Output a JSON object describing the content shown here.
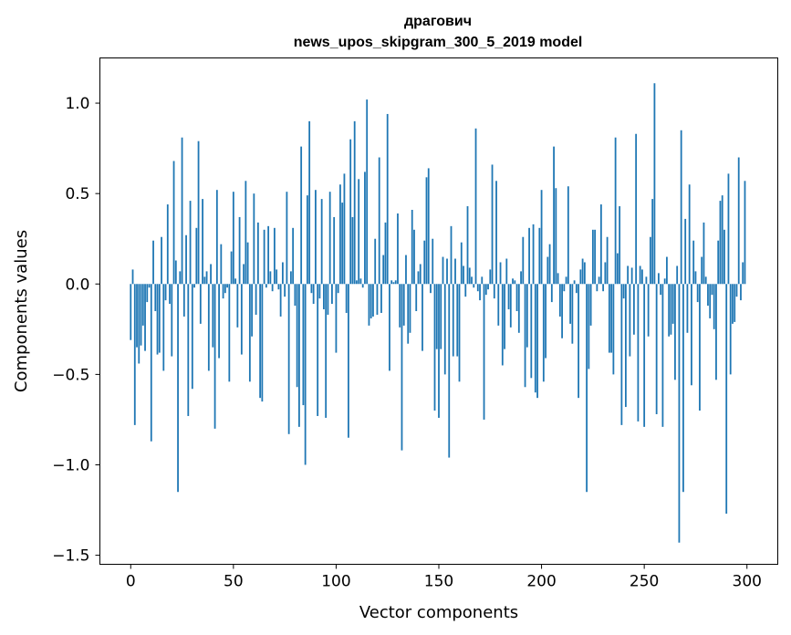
{
  "chart_data": {
    "type": "bar",
    "title_lines": [
      "драгович",
      "news_upos_skipgram_300_5_2019 model"
    ],
    "xlabel": "Vector components",
    "ylabel": "Components values",
    "xlim": [
      -15,
      315
    ],
    "ylim": [
      -1.55,
      1.25
    ],
    "xticks": [
      0,
      50,
      100,
      150,
      200,
      250,
      300
    ],
    "xtick_labels": [
      "0",
      "50",
      "100",
      "150",
      "200",
      "250",
      "300"
    ],
    "yticks": [
      -1.5,
      -1.0,
      -0.5,
      0.0,
      0.5,
      1.0
    ],
    "ytick_labels": [
      "−1.5",
      "−1.0",
      "−0.5",
      "0.0",
      "0.5",
      "1.0"
    ],
    "grid": false,
    "bar_color": "#1f77b4",
    "x": "indices 0..299",
    "values": [
      -0.31,
      0.08,
      -0.78,
      -0.35,
      -0.44,
      -0.34,
      -0.23,
      -0.37,
      -0.1,
      -0.02,
      -0.87,
      0.24,
      -0.15,
      -0.39,
      -0.38,
      0.26,
      -0.48,
      -0.09,
      0.44,
      -0.11,
      -0.4,
      0.68,
      0.13,
      -1.15,
      0.07,
      0.81,
      -0.18,
      0.27,
      -0.73,
      0.46,
      -0.58,
      -0.02,
      0.31,
      0.79,
      -0.22,
      0.47,
      0.04,
      0.07,
      -0.48,
      0.11,
      -0.35,
      -0.8,
      0.52,
      -0.41,
      0.22,
      -0.08,
      -0.05,
      -0.02,
      -0.54,
      0.18,
      0.51,
      0.03,
      -0.24,
      0.37,
      -0.39,
      0.11,
      0.57,
      0.23,
      -0.54,
      -0.29,
      0.5,
      -0.17,
      0.34,
      -0.63,
      -0.65,
      0.3,
      -0.02,
      0.32,
      0.07,
      -0.04,
      0.31,
      0.08,
      -0.03,
      -0.18,
      0.12,
      -0.07,
      0.51,
      -0.83,
      0.07,
      0.31,
      -0.12,
      -0.57,
      -0.79,
      0.76,
      -0.67,
      -1.0,
      0.49,
      0.9,
      -0.05,
      -0.11,
      0.52,
      -0.73,
      -0.08,
      0.47,
      -0.14,
      -0.74,
      -0.17,
      0.51,
      -0.11,
      0.37,
      -0.38,
      -0.05,
      0.55,
      0.45,
      0.61,
      -0.16,
      -0.85,
      0.8,
      0.37,
      0.9,
      0.02,
      0.58,
      0.03,
      -0.02,
      0.62,
      1.02,
      -0.23,
      -0.19,
      -0.18,
      0.25,
      -0.17,
      0.7,
      -0.16,
      0.16,
      0.34,
      0.94,
      -0.48,
      0.02,
      0.01,
      0.02,
      0.39,
      -0.24,
      -0.92,
      -0.23,
      0.16,
      -0.33,
      -0.27,
      0.41,
      0.3,
      -0.15,
      0.07,
      0.11,
      -0.37,
      0.24,
      0.59,
      0.64,
      -0.05,
      0.25,
      -0.7,
      -0.36,
      -0.74,
      -0.36,
      0.15,
      -0.5,
      0.14,
      -0.96,
      0.32,
      -0.4,
      0.14,
      -0.4,
      -0.54,
      0.23,
      0.1,
      -0.07,
      0.43,
      0.09,
      0.04,
      -0.02,
      0.86,
      -0.04,
      -0.09,
      0.04,
      -0.75,
      -0.06,
      -0.03,
      0.08,
      0.66,
      -0.08,
      0.57,
      -0.23,
      0.12,
      -0.45,
      -0.36,
      0.14,
      -0.14,
      -0.24,
      0.03,
      0.02,
      -0.15,
      -0.27,
      0.07,
      0.26,
      -0.57,
      -0.35,
      0.31,
      -0.52,
      0.33,
      -0.6,
      -0.63,
      0.31,
      0.52,
      -0.54,
      -0.41,
      0.15,
      0.22,
      -0.1,
      0.76,
      0.53,
      0.06,
      -0.18,
      -0.3,
      -0.04,
      0.04,
      0.54,
      -0.22,
      -0.33,
      0.02,
      -0.05,
      -0.63,
      0.08,
      0.14,
      0.12,
      -1.15,
      -0.47,
      -0.23,
      0.3,
      0.3,
      -0.04,
      0.04,
      0.44,
      -0.04,
      0.12,
      0.26,
      -0.38,
      -0.38,
      -0.5,
      0.81,
      0.17,
      0.43,
      -0.78,
      -0.08,
      -0.68,
      0.1,
      -0.4,
      0.09,
      -0.28,
      0.83,
      -0.76,
      0.1,
      0.08,
      -0.79,
      0.04,
      -0.29,
      0.26,
      0.47,
      1.11,
      -0.72,
      0.06,
      -0.06,
      -0.79,
      0.03,
      0.15,
      -0.29,
      -0.28,
      -0.22,
      -0.53,
      0.1,
      -1.43,
      0.85,
      -1.15,
      0.36,
      -0.27,
      0.55,
      -0.56,
      0.24,
      0.07,
      -0.1,
      -0.7,
      0.15,
      0.34,
      0.04,
      -0.12,
      -0.19,
      -0.06,
      -0.25,
      -0.53,
      0.24,
      0.46,
      0.49,
      0.3,
      -1.27,
      0.61,
      -0.5,
      -0.22,
      -0.21,
      -0.07,
      0.7,
      -0.09,
      0.12,
      0.57
    ]
  }
}
